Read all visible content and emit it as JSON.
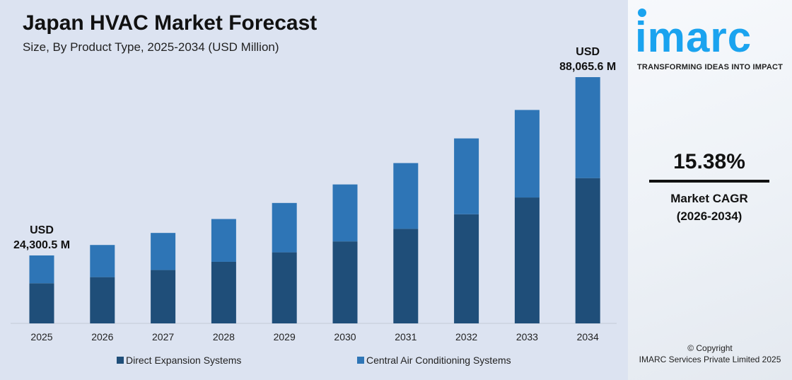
{
  "chart_data": {
    "type": "bar",
    "stacked": true,
    "title": "Japan HVAC Market Forecast",
    "subtitle": "Size, By Product Type, 2025-2034 (USD Million)",
    "categories": [
      "2025",
      "2026",
      "2027",
      "2028",
      "2029",
      "2030",
      "2031",
      "2032",
      "2033",
      "2034"
    ],
    "series": [
      {
        "name": "Direct Expansion Systems",
        "color": "#1f4e79",
        "values": [
          14337.0,
          16542.4,
          19086.4,
          22022.0,
          25408.9,
          29317.0,
          33825.6,
          39027.8,
          45030.0,
          51959.0
        ]
      },
      {
        "name": "Central Air Conditioning Systems",
        "color": "#2e75b6",
        "values": [
          9963.5,
          11495.5,
          13263.5,
          15303.3,
          17657.0,
          20372.4,
          23506.0,
          27121.0,
          31292.1,
          36106.6
        ]
      }
    ],
    "annotations": [
      {
        "category": "2025",
        "line1": "USD",
        "line2": "24,300.5 M"
      },
      {
        "category": "2034",
        "line1": "USD",
        "line2": "88,065.6 M"
      }
    ],
    "grid": false,
    "legend_position": "bottom"
  },
  "brand": {
    "logo": "imarc",
    "tagline": "TRANSFORMING IDEAS INTO IMPACT",
    "color": "#1aa3ef"
  },
  "cagr": {
    "value": "15.38%",
    "label": "Market CAGR",
    "period": "(2026-2034)"
  },
  "footer": {
    "copyright": "© Copyright",
    "company": "IMARC Services Private Limited 2025"
  }
}
